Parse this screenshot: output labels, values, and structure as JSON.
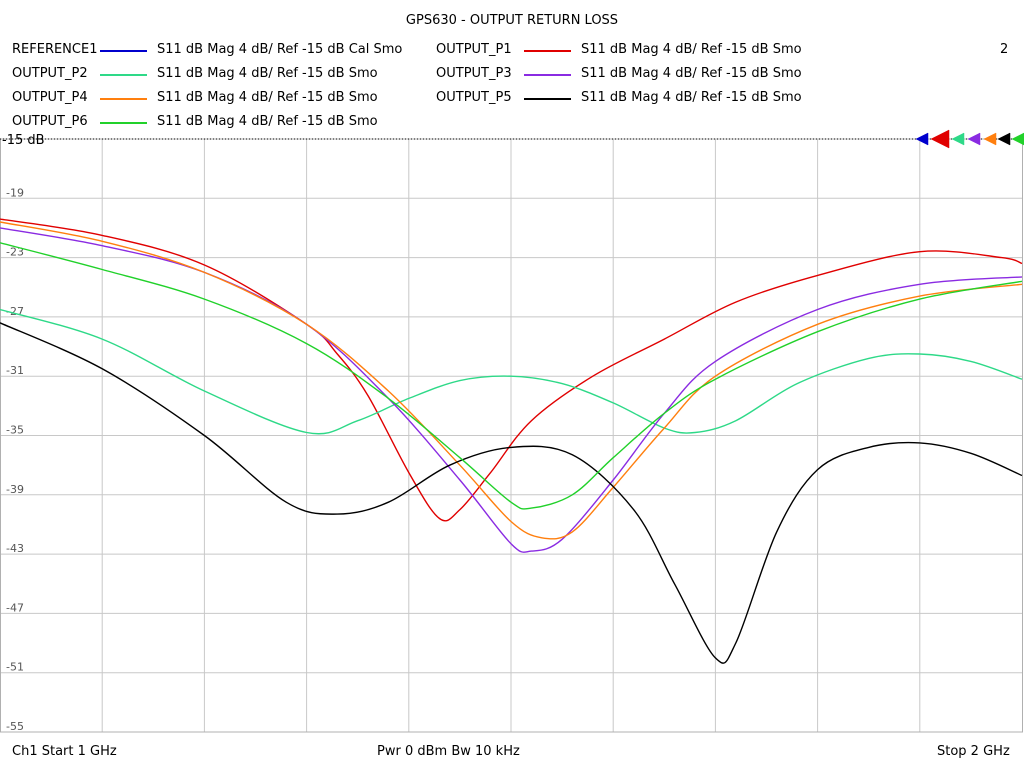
{
  "chart_data": {
    "type": "line",
    "title": "GPS630 - OUTPUT RETURN LOSS",
    "channel_number": "2",
    "x_unit": "GHz",
    "x_range": [
      1,
      2
    ],
    "ylim": [
      -55,
      -15
    ],
    "ref_label": "-15 dB",
    "y_ticks": [
      "-19",
      "-23",
      "-27",
      "-31",
      "-35",
      "-39",
      "-43",
      "-47",
      "-51",
      "-55"
    ],
    "grid": true,
    "legend_position": "top",
    "series": [
      {
        "name": "REFERENCE1",
        "desc": "S11  dB Mag  4 dB/ Ref -15 dB  Cal Smo",
        "color": "#0000cd",
        "x": [],
        "y": []
      },
      {
        "name": "OUTPUT_P1",
        "desc": "S11  dB Mag  4 dB/ Ref -15 dB  Smo",
        "color": "#e00000",
        "x": [
          1.0,
          1.1,
          1.2,
          1.3,
          1.33,
          1.36,
          1.4,
          1.43,
          1.45,
          1.48,
          1.52,
          1.58,
          1.65,
          1.72,
          1.8,
          1.9,
          1.98,
          2.0
        ],
        "y": [
          -20.4,
          -21.5,
          -23.5,
          -27.5,
          -29.5,
          -32.3,
          -37.5,
          -40.6,
          -40.0,
          -37.5,
          -34.0,
          -31.0,
          -28.5,
          -26.0,
          -24.2,
          -22.6,
          -23.0,
          -23.4
        ]
      },
      {
        "name": "OUTPUT_P2",
        "desc": "S11  dB Mag  4 dB/ Ref -15 dB  Smo",
        "color": "#2ed988",
        "x": [
          1.0,
          1.1,
          1.2,
          1.3,
          1.35,
          1.4,
          1.45,
          1.5,
          1.55,
          1.6,
          1.65,
          1.68,
          1.72,
          1.78,
          1.85,
          1.9,
          1.95,
          2.0
        ],
        "y": [
          -26.5,
          -28.5,
          -32.0,
          -34.8,
          -34.0,
          -32.5,
          -31.3,
          -31.0,
          -31.5,
          -32.8,
          -34.5,
          -34.8,
          -34.0,
          -31.5,
          -29.8,
          -29.5,
          -30.0,
          -31.2
        ]
      },
      {
        "name": "OUTPUT_P3",
        "desc": "S11  dB Mag  4 dB/ Ref -15 dB  Smo",
        "color": "#8a2be2",
        "x": [
          1.0,
          1.1,
          1.2,
          1.3,
          1.38,
          1.45,
          1.5,
          1.52,
          1.55,
          1.6,
          1.65,
          1.7,
          1.8,
          1.9,
          2.0
        ],
        "y": [
          -21.0,
          -22.2,
          -24.0,
          -27.5,
          -32.5,
          -38.0,
          -42.3,
          -42.8,
          -42.0,
          -38.0,
          -33.5,
          -30.0,
          -26.5,
          -24.8,
          -24.3
        ]
      },
      {
        "name": "OUTPUT_P4",
        "desc": "S11  dB Mag  4 dB/ Ref -15 dB  Smo",
        "color": "#ff7f0e",
        "x": [
          1.0,
          1.1,
          1.2,
          1.3,
          1.38,
          1.45,
          1.5,
          1.53,
          1.56,
          1.6,
          1.65,
          1.7,
          1.8,
          1.9,
          2.0
        ],
        "y": [
          -20.6,
          -21.9,
          -24.0,
          -27.5,
          -32.0,
          -37.0,
          -40.8,
          -41.9,
          -41.5,
          -38.5,
          -34.5,
          -31.0,
          -27.5,
          -25.6,
          -24.8
        ]
      },
      {
        "name": "OUTPUT_P5",
        "desc": "S11  dB Mag  4 dB/ Ref -15 dB  Smo",
        "color": "#000000",
        "x": [
          1.0,
          1.1,
          1.2,
          1.28,
          1.33,
          1.38,
          1.44,
          1.5,
          1.56,
          1.62,
          1.66,
          1.7,
          1.72,
          1.76,
          1.8,
          1.85,
          1.9,
          1.95,
          2.0
        ],
        "y": [
          -27.4,
          -30.5,
          -35.0,
          -39.5,
          -40.3,
          -39.5,
          -37.0,
          -35.8,
          -36.3,
          -40.0,
          -45.0,
          -50.0,
          -49.0,
          -41.5,
          -37.3,
          -35.8,
          -35.5,
          -36.2,
          -37.7
        ]
      },
      {
        "name": "OUTPUT_P6",
        "desc": "S11  dB Mag  4 dB/ Ref -15 dB  Smo",
        "color": "#21d12a",
        "x": [
          1.0,
          1.1,
          1.2,
          1.3,
          1.38,
          1.45,
          1.5,
          1.52,
          1.56,
          1.6,
          1.65,
          1.7,
          1.8,
          1.9,
          2.0
        ],
        "y": [
          -22.0,
          -23.8,
          -25.8,
          -28.8,
          -32.5,
          -36.5,
          -39.5,
          -39.9,
          -39.0,
          -36.5,
          -33.5,
          -31.2,
          -28.0,
          -25.8,
          -24.6
        ]
      }
    ]
  },
  "footer": {
    "start": "Ch1  Start  1 GHz",
    "mid": "Pwr  0 dBm  Bw  10 kHz",
    "stop": "Stop  2 GHz"
  }
}
